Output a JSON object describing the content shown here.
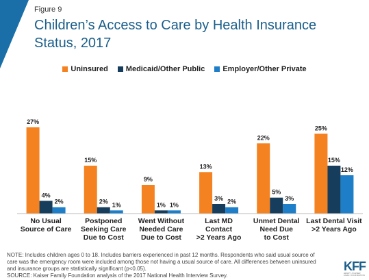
{
  "figure_label": "Figure 9",
  "colors": {
    "accent": "#1a6fa8",
    "uninsured": "#f58220",
    "medicaid": "#163d5c",
    "employer": "#1e7ec8"
  },
  "note": {
    "line1": "NOTE: Includes children ages 0 to 18. Includes barriers experienced in past 12 months. Respondents who said usual source of",
    "line2": "care was the emergency room were included among those not having a usual source of care. All differences between uninsured",
    "line3": "and insurance groups are statistically significant (p<0.05).",
    "source": "SOURCE: Kaiser Family Foundation analysis of the 2017 National Health Interview Survey."
  },
  "logo": {
    "text": "KFF",
    "sub1": "HENRY J KAISER",
    "sub2": "FAMILY FOUNDATION"
  },
  "chart_data": {
    "type": "bar",
    "title": "Children’s Access to Care by Health Insurance Status, 2017",
    "legend_position": "top",
    "grid": false,
    "ylim": [
      0,
      30
    ],
    "categories": [
      [
        "No Usual",
        "Source of Care"
      ],
      [
        "Postponed",
        "Seeking Care",
        "Due to Cost"
      ],
      [
        "Went Without",
        "Needed Care",
        "Due to Cost"
      ],
      [
        "Last MD",
        "Contact",
        ">2 Years Ago"
      ],
      [
        "Unmet Dental",
        "Need Due",
        "to Cost"
      ],
      [
        "Last Dental Visit",
        ">2 Years Ago"
      ]
    ],
    "series": [
      {
        "name": "Uninsured",
        "color": "#f58220",
        "values": [
          27,
          15,
          9,
          13,
          22,
          25
        ]
      },
      {
        "name": "Medicaid/Other Public",
        "color": "#163d5c",
        "values": [
          4,
          2,
          1,
          3,
          5,
          15
        ]
      },
      {
        "name": "Employer/Other Private",
        "color": "#1e7ec8",
        "values": [
          2,
          1,
          1,
          2,
          3,
          12
        ]
      }
    ],
    "value_suffix": "%"
  }
}
